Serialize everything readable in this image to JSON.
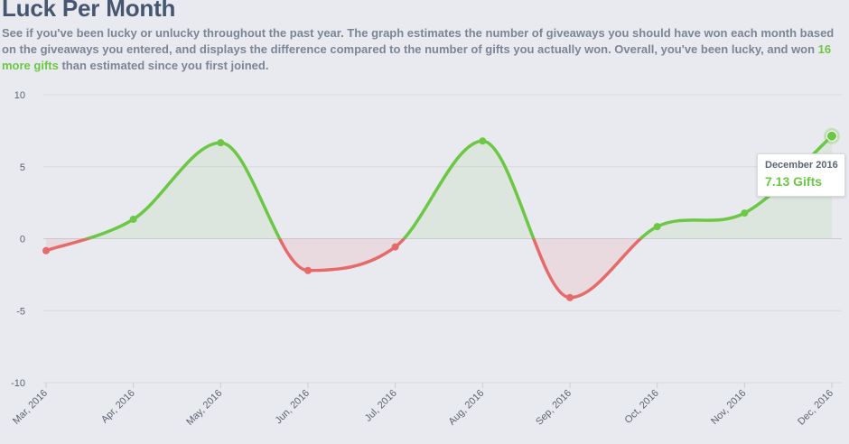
{
  "header": {
    "title": "Luck Per Month",
    "description_part1": "See if you've been lucky or unlucky throughout the past year. The graph estimates the number of giveaways you should have won each month based on the giveaways you entered, and displays the difference compared to the number of gifts you actually won. Overall, you've been lucky, and won ",
    "description_highlight": "16 more gifts",
    "description_part2": " than estimated since you first joined."
  },
  "tooltip": {
    "date": "December 2016",
    "value": "7.13 Gifts"
  },
  "colors": {
    "positive": "#6cc744",
    "negative": "#e76a6a",
    "positive_fill": "rgba(108,199,68,0.10)",
    "negative_fill": "rgba(231,106,106,0.12)",
    "grid": "#d7d9de",
    "axis_text": "#5d6470"
  },
  "chart_data": {
    "type": "area",
    "title": "Luck Per Month",
    "categories": [
      "Mar, 2016",
      "Apr, 2016",
      "May, 2016",
      "Jun, 2016",
      "Jul, 2016",
      "Aug, 2016",
      "Sep, 2016",
      "Oct, 2016",
      "Nov, 2016",
      "Dec, 2016"
    ],
    "series": [
      {
        "values": [
          -0.83,
          1.35,
          6.67,
          -2.21,
          -0.57,
          6.79,
          -4.09,
          0.84,
          1.78,
          7.13
        ]
      }
    ],
    "ylim": [
      -10,
      10
    ],
    "yticks": [
      10,
      5,
      0,
      -5,
      -10
    ],
    "grid": true,
    "xlabel": "",
    "ylabel": ""
  }
}
